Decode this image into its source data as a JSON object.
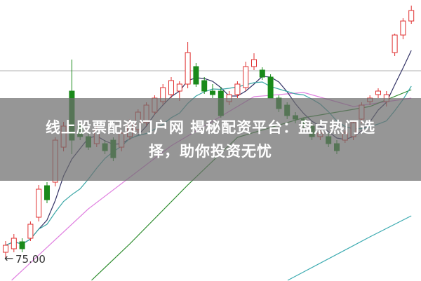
{
  "headline": {
    "line1": "线上股票配资门户网 揭秘配资平台：盘点热门选",
    "line2": "择，助你投资无忧"
  },
  "chart_data": {
    "type": "candlestick",
    "price_label": "75.00",
    "colors": {
      "up": "#e03030",
      "down": "#1a8a1a",
      "ma5": "#333366",
      "ma10": "#3aa6a6",
      "ma_pink": "#e080e0",
      "ma_green": "#2a8a2a",
      "ma_cyan": "#3aaab0",
      "grid": "#b0b0b0"
    },
    "candles": [
      [
        75.4,
        76.2,
        74.9,
        75.9
      ],
      [
        75.65,
        76.7,
        75.4,
        76.4
      ],
      [
        76.15,
        76.4,
        75.4,
        75.65
      ],
      [
        76.4,
        77.6,
        76.2,
        77.4
      ],
      [
        77.9,
        80.2,
        77.6,
        79.9
      ],
      [
        80.15,
        80.4,
        78.9,
        79.15
      ],
      [
        80.4,
        83.6,
        80.1,
        83.4
      ],
      [
        82.9,
        84.7,
        82.6,
        84.4
      ],
      [
        86.9,
        89.15,
        82.4,
        83.4
      ],
      [
        84.4,
        84.6,
        83.4,
        83.65
      ],
      [
        83.65,
        83.9,
        82.7,
        82.9
      ],
      [
        83.15,
        84.4,
        82.9,
        84.15
      ],
      [
        83.15,
        83.4,
        82.4,
        82.65
      ],
      [
        83.4,
        83.6,
        81.9,
        82.15
      ],
      [
        82.9,
        84.0,
        82.6,
        83.9
      ],
      [
        83.65,
        84.9,
        83.4,
        84.65
      ],
      [
        84.15,
        85.6,
        83.9,
        85.4
      ],
      [
        84.65,
        86.1,
        84.4,
        85.9
      ],
      [
        85.4,
        86.6,
        85.2,
        86.4
      ],
      [
        86.15,
        87.4,
        85.9,
        87.15
      ],
      [
        86.65,
        87.9,
        86.4,
        87.65
      ],
      [
        86.9,
        87.6,
        86.2,
        87.4
      ],
      [
        87.4,
        90.4,
        87.1,
        89.65
      ],
      [
        88.65,
        88.9,
        87.2,
        87.4
      ],
      [
        87.65,
        87.9,
        86.7,
        86.9
      ],
      [
        86.9,
        87.4,
        86.4,
        86.65
      ],
      [
        86.9,
        87.2,
        85.0,
        85.15
      ],
      [
        86.15,
        86.9,
        85.9,
        86.65
      ],
      [
        86.65,
        87.6,
        86.4,
        87.4
      ],
      [
        87.15,
        89.0,
        86.9,
        88.65
      ],
      [
        88.65,
        89.6,
        88.4,
        89.15
      ],
      [
        88.4,
        88.6,
        87.7,
        87.9
      ],
      [
        87.9,
        88.1,
        86.4,
        86.4
      ],
      [
        86.4,
        86.6,
        85.4,
        85.65
      ],
      [
        85.9,
        86.1,
        84.9,
        85.15
      ],
      [
        85.15,
        85.4,
        84.6,
        84.9
      ],
      [
        84.9,
        85.0,
        84.2,
        84.4
      ],
      [
        84.4,
        84.6,
        83.4,
        83.65
      ],
      [
        83.65,
        84.1,
        83.4,
        83.9
      ],
      [
        83.65,
        83.9,
        82.9,
        83.15
      ],
      [
        83.15,
        83.4,
        82.4,
        82.65
      ],
      [
        83.4,
        84.1,
        83.2,
        83.9
      ],
      [
        83.65,
        84.8,
        83.4,
        84.65
      ],
      [
        84.9,
        86.1,
        84.6,
        85.9
      ],
      [
        86.15,
        86.6,
        85.9,
        86.4
      ],
      [
        86.65,
        87.1,
        86.4,
        86.9
      ],
      [
        86.15,
        86.9,
        85.8,
        86.65
      ],
      [
        89.65,
        91.0,
        89.4,
        90.9
      ],
      [
        90.9,
        92.1,
        90.6,
        91.9
      ],
      [
        91.9,
        93.0,
        91.7,
        92.65
      ]
    ],
    "ma_long": [
      {
        "color_key": "ma_pink",
        "values": [
          [
            0,
            73.0
          ],
          [
            10,
            78.5
          ],
          [
            20,
            83.0
          ],
          [
            30,
            86.5
          ],
          [
            36,
            86.8
          ],
          [
            42,
            85.8
          ],
          [
            49,
            86.4
          ]
        ]
      },
      {
        "color_key": "ma_green",
        "values": [
          [
            7,
            71.5
          ],
          [
            15,
            76.0
          ],
          [
            22,
            80.2
          ],
          [
            28,
            83.6
          ],
          [
            36,
            85.0
          ],
          [
            44,
            85.8
          ],
          [
            49,
            87.0
          ]
        ]
      },
      {
        "color_key": "ma_cyan",
        "values": [
          [
            28,
            71.5
          ],
          [
            36,
            74.0
          ],
          [
            44,
            76.5
          ],
          [
            49,
            78.0
          ]
        ]
      }
    ]
  }
}
